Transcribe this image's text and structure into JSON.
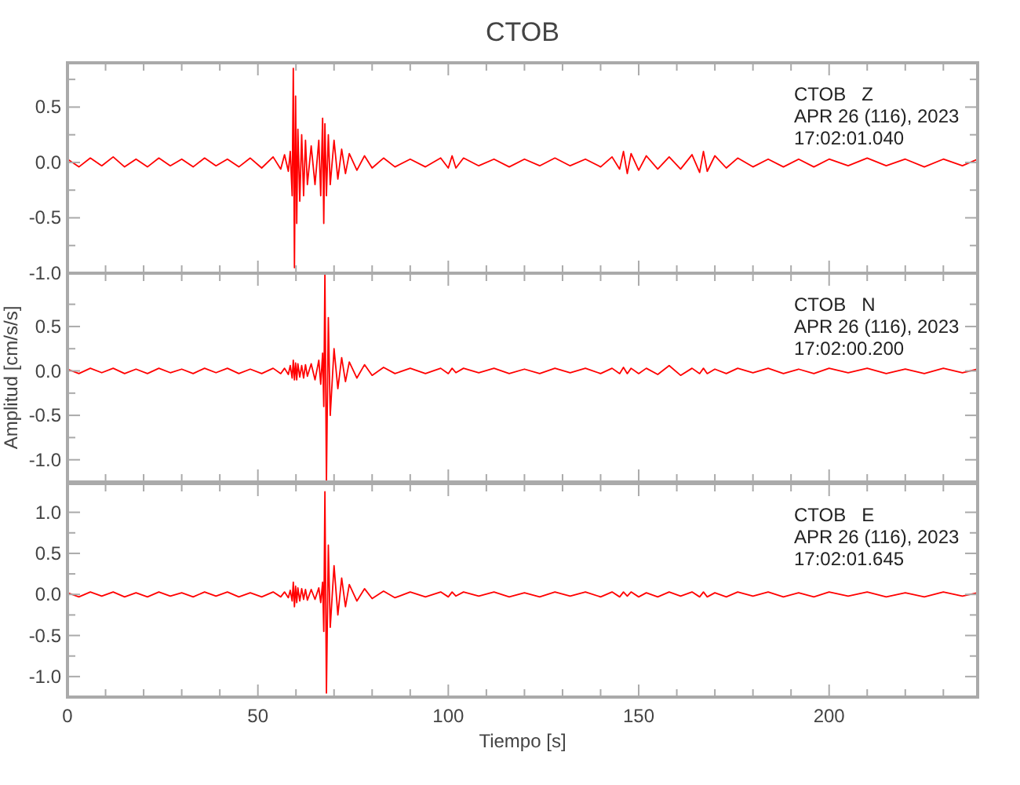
{
  "chart_data": [
    {
      "type": "line",
      "title": "CTOB",
      "color": "#ff0000",
      "tick_labels": "y",
      "annotations": [
        "CTOB   Z",
        "APR 26 (116), 2023",
        "17:02:01.040"
      ],
      "xlim": [
        0,
        239
      ],
      "xticks": [
        0,
        {
          "value": 10,
          "label": null
        },
        {
          "value": 20,
          "label": null
        },
        {
          "value": 30,
          "label": null
        },
        {
          "value": 40,
          "label": null
        },
        50,
        {
          "value": 60,
          "label": null
        },
        {
          "value": 70,
          "label": null
        },
        {
          "value": 80,
          "label": null
        },
        {
          "value": 90,
          "label": null
        },
        100,
        {
          "value": 110,
          "label": null
        },
        {
          "value": 120,
          "label": null
        },
        {
          "value": 130,
          "label": null
        },
        {
          "value": 140,
          "label": null
        },
        150,
        {
          "value": 160,
          "label": null
        },
        {
          "value": 170,
          "label": null
        },
        {
          "value": 180,
          "label": null
        },
        {
          "value": 190,
          "label": null
        },
        200,
        {
          "value": 210,
          "label": null
        },
        {
          "value": 220,
          "label": null
        },
        {
          "value": 230,
          "label": null
        }
      ],
      "ylim": [
        -1.0,
        0.9
      ],
      "yticks": [
        {
          "value": -1.0,
          "label": "-1.0"
        },
        {
          "value": -0.75,
          "label": null
        },
        {
          "value": -0.5,
          "label": "-0.5"
        },
        {
          "value": -0.25,
          "label": null
        },
        {
          "value": 0,
          "label": "0.0"
        },
        {
          "value": 0.25,
          "label": null
        },
        {
          "value": 0.5,
          "label": "0.5"
        },
        {
          "value": 0.75,
          "label": null
        }
      ],
      "x": [
        0,
        3,
        6,
        9,
        12,
        15,
        18,
        21,
        24,
        27,
        30,
        33,
        36,
        39,
        42,
        45,
        48,
        51,
        54,
        56,
        57,
        58,
        58.5,
        59,
        59.3,
        59.6,
        59.9,
        60.2,
        60.5,
        61,
        61.5,
        62,
        62.5,
        63,
        64,
        65,
        66,
        66.5,
        67,
        67.3,
        67.6,
        68,
        68.5,
        69,
        70,
        71,
        72,
        73,
        74,
        76,
        78,
        80,
        83,
        86,
        90,
        94,
        98,
        100,
        101,
        102,
        104,
        108,
        112,
        116,
        120,
        124,
        128,
        132,
        136,
        140,
        143,
        145,
        146,
        147,
        148,
        150,
        152,
        155,
        158,
        161,
        164,
        166,
        167,
        168,
        170,
        173,
        176,
        180,
        184,
        188,
        192,
        196,
        200,
        205,
        210,
        215,
        220,
        225,
        230,
        235,
        239
      ],
      "values": [
        0.03,
        -0.04,
        0.04,
        -0.03,
        0.05,
        -0.04,
        0.03,
        -0.04,
        0.04,
        -0.03,
        0.03,
        -0.04,
        0.04,
        -0.03,
        0.03,
        -0.04,
        0.04,
        -0.05,
        0.05,
        -0.06,
        0.07,
        -0.08,
        0.1,
        -0.3,
        0.85,
        -0.95,
        0.6,
        -0.55,
        0.3,
        -0.35,
        0.25,
        -0.3,
        0.2,
        -0.2,
        0.15,
        -0.2,
        0.2,
        -0.3,
        0.4,
        -0.55,
        0.35,
        -0.3,
        0.25,
        -0.2,
        0.2,
        -0.15,
        0.12,
        -0.1,
        0.08,
        -0.07,
        0.06,
        -0.05,
        0.04,
        -0.04,
        0.03,
        -0.04,
        0.04,
        -0.05,
        0.06,
        -0.05,
        0.04,
        -0.03,
        0.03,
        -0.04,
        0.03,
        -0.03,
        0.04,
        -0.03,
        0.03,
        -0.04,
        0.05,
        -0.06,
        0.1,
        -0.1,
        0.08,
        -0.07,
        0.06,
        -0.06,
        0.05,
        -0.06,
        0.07,
        -0.09,
        0.1,
        -0.08,
        0.06,
        -0.05,
        0.04,
        -0.04,
        0.03,
        -0.04,
        0.03,
        -0.04,
        0.03,
        -0.03,
        0.04,
        -0.03,
        0.03,
        -0.04,
        0.03,
        -0.03,
        0.03
      ]
    },
    {
      "type": "line",
      "ylabel": "Amplitud [cm/s/s]",
      "color": "#ff0000",
      "tick_labels": "y",
      "annotations": [
        "CTOB   N",
        "APR 26 (116), 2023",
        "17:02:00.200"
      ],
      "xlim": [
        0,
        239
      ],
      "xticks": [
        0,
        {
          "value": 10,
          "label": null
        },
        {
          "value": 20,
          "label": null
        },
        {
          "value": 30,
          "label": null
        },
        {
          "value": 40,
          "label": null
        },
        50,
        {
          "value": 60,
          "label": null
        },
        {
          "value": 70,
          "label": null
        },
        {
          "value": 80,
          "label": null
        },
        {
          "value": 90,
          "label": null
        },
        100,
        {
          "value": 110,
          "label": null
        },
        {
          "value": 120,
          "label": null
        },
        {
          "value": 130,
          "label": null
        },
        {
          "value": 140,
          "label": null
        },
        150,
        {
          "value": 160,
          "label": null
        },
        {
          "value": 170,
          "label": null
        },
        {
          "value": 180,
          "label": null
        },
        {
          "value": 190,
          "label": null
        },
        200,
        {
          "value": 210,
          "label": null
        },
        {
          "value": 220,
          "label": null
        },
        {
          "value": 230,
          "label": null
        }
      ],
      "ylim": [
        -1.25,
        1.1
      ],
      "yticks": [
        {
          "value": -1.0,
          "label": "-1.0"
        },
        {
          "value": -0.75,
          "label": null
        },
        {
          "value": -0.5,
          "label": "-0.5"
        },
        {
          "value": -0.25,
          "label": null
        },
        {
          "value": 0,
          "label": "0.0"
        },
        {
          "value": 0.25,
          "label": null
        },
        {
          "value": 0.5,
          "label": "0.5"
        },
        {
          "value": 0.75,
          "label": null
        }
      ],
      "x": [
        0,
        3,
        6,
        9,
        12,
        15,
        18,
        21,
        24,
        27,
        30,
        33,
        36,
        39,
        42,
        45,
        48,
        51,
        54,
        56,
        57,
        58,
        58.5,
        59,
        59.3,
        59.6,
        59.9,
        60.2,
        60.5,
        61,
        61.5,
        62,
        62.5,
        63,
        64,
        65,
        66,
        66.5,
        67,
        67.3,
        67.6,
        68,
        68.5,
        69,
        70,
        71,
        72,
        73,
        74,
        76,
        78,
        80,
        83,
        86,
        90,
        94,
        98,
        100,
        101,
        102,
        104,
        108,
        112,
        116,
        120,
        124,
        128,
        132,
        136,
        140,
        143,
        145,
        146,
        147,
        148,
        150,
        152,
        155,
        158,
        161,
        164,
        166,
        167,
        168,
        170,
        173,
        176,
        180,
        184,
        188,
        192,
        196,
        200,
        205,
        210,
        215,
        220,
        225,
        230,
        235,
        239
      ],
      "values": [
        0.02,
        -0.03,
        0.03,
        -0.02,
        0.03,
        -0.03,
        0.02,
        -0.03,
        0.03,
        -0.02,
        0.02,
        -0.03,
        0.03,
        -0.02,
        0.03,
        -0.03,
        0.02,
        -0.03,
        0.03,
        -0.03,
        0.03,
        -0.04,
        0.06,
        -0.08,
        0.12,
        -0.1,
        0.09,
        -0.1,
        0.08,
        -0.07,
        0.06,
        -0.08,
        0.07,
        -0.06,
        0.08,
        -0.1,
        0.12,
        -0.15,
        0.2,
        -0.4,
        1.1,
        -1.25,
        0.6,
        -0.5,
        0.25,
        -0.2,
        0.15,
        -0.12,
        0.1,
        -0.08,
        0.07,
        -0.05,
        0.04,
        -0.03,
        0.03,
        -0.03,
        0.03,
        -0.03,
        0.03,
        -0.02,
        0.03,
        -0.02,
        0.03,
        -0.03,
        0.02,
        -0.03,
        0.03,
        -0.02,
        0.03,
        -0.03,
        0.03,
        -0.03,
        0.04,
        -0.03,
        0.03,
        -0.03,
        0.03,
        -0.04,
        0.06,
        -0.05,
        0.03,
        -0.03,
        0.03,
        -0.03,
        0.02,
        -0.03,
        0.03,
        -0.02,
        0.03,
        -0.03,
        0.02,
        -0.03,
        0.03,
        -0.02,
        0.03,
        -0.03,
        0.02,
        -0.03,
        0.03,
        -0.02,
        0.02
      ]
    },
    {
      "type": "line",
      "xlabel": "Tiempo [s]",
      "color": "#ff0000",
      "annotations": [
        "CTOB   E",
        "APR 26 (116), 2023",
        "17:02:01.645"
      ],
      "xlim": [
        0,
        239
      ],
      "xticks": [
        0,
        {
          "value": 10,
          "label": null
        },
        {
          "value": 20,
          "label": null
        },
        {
          "value": 30,
          "label": null
        },
        {
          "value": 40,
          "label": null
        },
        50,
        {
          "value": 60,
          "label": null
        },
        {
          "value": 70,
          "label": null
        },
        {
          "value": 80,
          "label": null
        },
        {
          "value": 90,
          "label": null
        },
        100,
        {
          "value": 110,
          "label": null
        },
        {
          "value": 120,
          "label": null
        },
        {
          "value": 130,
          "label": null
        },
        {
          "value": 140,
          "label": null
        },
        150,
        {
          "value": 160,
          "label": null
        },
        {
          "value": 170,
          "label": null
        },
        {
          "value": 180,
          "label": null
        },
        {
          "value": 190,
          "label": null
        },
        200,
        {
          "value": 210,
          "label": null
        },
        {
          "value": 220,
          "label": null
        },
        {
          "value": 230,
          "label": null
        }
      ],
      "ylim": [
        -1.25,
        1.35
      ],
      "yticks": [
        {
          "value": -1.0,
          "label": "-1.0"
        },
        {
          "value": -0.75,
          "label": null
        },
        {
          "value": -0.5,
          "label": "-0.5"
        },
        {
          "value": -0.25,
          "label": null
        },
        {
          "value": 0,
          "label": "0.0"
        },
        {
          "value": 0.25,
          "label": null
        },
        {
          "value": 0.5,
          "label": "0.5"
        },
        {
          "value": 0.75,
          "label": null
        },
        {
          "value": 1.0,
          "label": "1.0"
        }
      ],
      "x": [
        0,
        3,
        6,
        9,
        12,
        15,
        18,
        21,
        24,
        27,
        30,
        33,
        36,
        39,
        42,
        45,
        48,
        51,
        54,
        56,
        57,
        58,
        58.5,
        59,
        59.3,
        59.6,
        59.9,
        60.2,
        60.5,
        61,
        61.5,
        62,
        62.5,
        63,
        64,
        65,
        66,
        66.5,
        67,
        67.3,
        67.6,
        68,
        68.5,
        69,
        70,
        71,
        72,
        73,
        74,
        76,
        78,
        80,
        83,
        86,
        90,
        94,
        98,
        100,
        101,
        102,
        104,
        108,
        112,
        116,
        120,
        124,
        128,
        132,
        136,
        140,
        143,
        145,
        146,
        147,
        148,
        150,
        152,
        155,
        158,
        161,
        164,
        166,
        167,
        168,
        170,
        173,
        176,
        180,
        184,
        188,
        192,
        196,
        200,
        205,
        210,
        215,
        220,
        225,
        230,
        235,
        239
      ],
      "values": [
        0.02,
        -0.03,
        0.03,
        -0.02,
        0.03,
        -0.03,
        0.02,
        -0.03,
        0.03,
        -0.02,
        0.02,
        -0.03,
        0.03,
        -0.02,
        0.03,
        -0.03,
        0.02,
        -0.03,
        0.03,
        -0.03,
        0.03,
        -0.04,
        0.05,
        -0.08,
        0.15,
        -0.15,
        0.1,
        -0.1,
        0.08,
        -0.08,
        0.07,
        -0.06,
        0.06,
        -0.07,
        0.06,
        -0.06,
        0.08,
        -0.1,
        0.15,
        -0.45,
        1.25,
        -1.2,
        0.6,
        -0.4,
        0.35,
        -0.25,
        0.2,
        -0.15,
        0.12,
        -0.08,
        0.07,
        -0.05,
        0.04,
        -0.04,
        0.03,
        -0.03,
        0.03,
        -0.03,
        0.03,
        -0.02,
        0.03,
        -0.02,
        0.03,
        -0.03,
        0.02,
        -0.03,
        0.03,
        -0.02,
        0.03,
        -0.03,
        0.03,
        -0.03,
        0.03,
        -0.02,
        0.03,
        -0.03,
        0.02,
        -0.03,
        0.03,
        -0.02,
        0.03,
        -0.03,
        0.03,
        -0.03,
        0.02,
        -0.03,
        0.03,
        -0.02,
        0.03,
        -0.03,
        0.02,
        -0.03,
        0.03,
        -0.02,
        0.03,
        -0.03,
        0.02,
        -0.03,
        0.03,
        -0.02,
        0.02
      ]
    }
  ]
}
